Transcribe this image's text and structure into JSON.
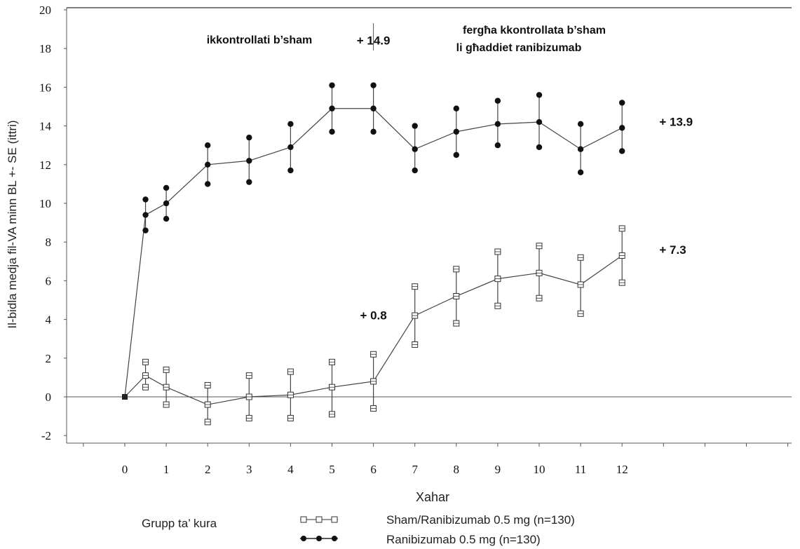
{
  "chart_data": {
    "type": "line",
    "ylabel": "Il-bidla medja fil-VA minn BL +- SE (ittri)",
    "xlabel": "Xahar",
    "ylim": [
      -2,
      20
    ],
    "xlim": [
      0,
      12
    ],
    "x_ticks": [
      "0",
      "1",
      "2",
      "3",
      "4",
      "5",
      "6",
      "7",
      "8",
      "9",
      "10",
      "11",
      "12"
    ],
    "y_ticks": [
      "-2",
      "0",
      "2",
      "4",
      "6",
      "8",
      "10",
      "12",
      "14",
      "16",
      "18",
      "20"
    ],
    "phase_labels": {
      "left": "ikkontrollati b’sham",
      "right_line1": "fergħa kkontrollata b’sham",
      "right_line2": "li għaddiet ranibizumab"
    },
    "annotations": [
      {
        "text": "+ 14.9",
        "x": 6,
        "y": 18.2
      },
      {
        "text": "+ 13.9",
        "x": 12.9,
        "y": 14.0
      },
      {
        "text": "+ 7.3",
        "x": 12.9,
        "y": 7.4
      },
      {
        "text": "+ 0.8",
        "x": 6,
        "y": 4.0
      }
    ],
    "legend_title": "Grupp ta’ kura",
    "series": [
      {
        "name": "Sham/Ranibizumab 0.5 mg (n=130)",
        "marker": "open-square",
        "x": [
          0,
          0.5,
          1,
          2,
          3,
          4,
          5,
          6,
          7,
          8,
          9,
          10,
          11,
          12
        ],
        "values": [
          0,
          1.1,
          0.5,
          -0.4,
          0.0,
          0.1,
          0.5,
          0.8,
          4.2,
          5.2,
          6.1,
          6.4,
          5.8,
          7.3
        ],
        "se_upper": [
          0,
          1.8,
          1.4,
          0.6,
          1.1,
          1.3,
          1.8,
          2.2,
          5.7,
          6.6,
          7.5,
          7.8,
          7.2,
          8.7
        ],
        "se_lower": [
          0,
          0.5,
          -0.4,
          -1.3,
          -1.1,
          -1.1,
          -0.9,
          -0.6,
          2.7,
          3.8,
          4.7,
          5.1,
          4.3,
          5.9
        ]
      },
      {
        "name": "Ranibizumab 0.5 mg (n=130)",
        "marker": "filled-circle",
        "x": [
          0,
          0.5,
          1,
          2,
          3,
          4,
          5,
          6,
          7,
          8,
          9,
          10,
          11,
          12
        ],
        "values": [
          0,
          9.4,
          10.0,
          12.0,
          12.2,
          12.9,
          14.9,
          14.9,
          12.8,
          13.7,
          14.1,
          14.2,
          12.8,
          13.9
        ],
        "se_upper": [
          0,
          10.2,
          10.8,
          13.0,
          13.4,
          14.1,
          16.1,
          16.1,
          14.0,
          14.9,
          15.3,
          15.6,
          14.1,
          15.2
        ],
        "se_lower": [
          0,
          8.6,
          9.2,
          11.0,
          11.1,
          11.7,
          13.7,
          13.7,
          11.7,
          12.5,
          13.0,
          12.9,
          11.6,
          12.7
        ]
      }
    ],
    "zero_line": true,
    "phase_divider_x": 6
  },
  "colors": {
    "axis": "#555555",
    "series_line": "#444444",
    "marker_fill": "#111111"
  }
}
